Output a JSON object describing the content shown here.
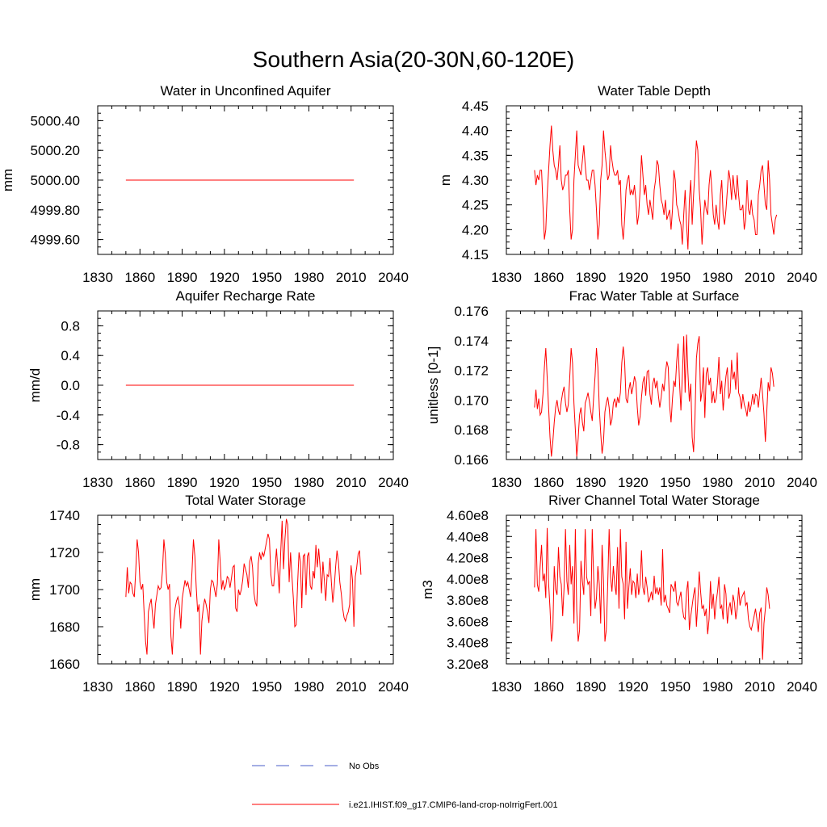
{
  "title": "Southern Asia(20-30N,60-120E)",
  "legend": {
    "entries": [
      {
        "label": "No Obs",
        "color": "#4a5cc8",
        "style": "dashed"
      },
      {
        "label": "i.e21.IHIST.f09_g17.CMIP6-land-crop-noIrrigFert.001",
        "color": "#ff0000",
        "style": "solid"
      }
    ]
  },
  "chart_data": [
    {
      "type": "line",
      "title": "Water in Unconfined Aquifer",
      "xlabel": "",
      "ylabel": "mm",
      "xlim": [
        1830,
        2040
      ],
      "ylim": [
        4999.5,
        5000.5
      ],
      "xticks": [
        "1830",
        "1860",
        "1890",
        "1920",
        "1950",
        "1980",
        "2010",
        "2040"
      ],
      "yticks": [
        "4999.60",
        "4999.80",
        "5000.00",
        "5000.20",
        "5000.40"
      ],
      "series": [
        {
          "color": "#ff0000",
          "x": [
            1850,
            2012
          ],
          "values": [
            5000.0,
            5000.0
          ]
        }
      ]
    },
    {
      "type": "line",
      "title": "Water Table Depth",
      "xlabel": "",
      "ylabel": "m",
      "xlim": [
        1830,
        2040
      ],
      "ylim": [
        4.15,
        4.45
      ],
      "xticks": [
        "1830",
        "1860",
        "1890",
        "1920",
        "1950",
        "1980",
        "2010",
        "2040"
      ],
      "yticks": [
        "4.15",
        "4.20",
        "4.25",
        "4.30",
        "4.35",
        "4.40",
        "4.45"
      ],
      "series": [
        {
          "color": "#ff0000",
          "x_start": 1850,
          "values": [
            4.32,
            4.29,
            4.31,
            4.3,
            4.32,
            4.32,
            4.25,
            4.18,
            4.2,
            4.27,
            4.32,
            4.37,
            4.41,
            4.36,
            4.33,
            4.32,
            4.3,
            4.33,
            4.37,
            4.3,
            4.28,
            4.29,
            4.31,
            4.31,
            4.32,
            4.24,
            4.18,
            4.2,
            4.3,
            4.35,
            4.4,
            4.33,
            4.32,
            4.31,
            4.34,
            4.37,
            4.33,
            4.3,
            4.3,
            4.28,
            4.3,
            4.32,
            4.32,
            4.29,
            4.24,
            4.18,
            4.21,
            4.3,
            4.33,
            4.4,
            4.36,
            4.33,
            4.3,
            4.31,
            4.37,
            4.34,
            4.32,
            4.31,
            4.31,
            4.32,
            4.29,
            4.3,
            4.21,
            4.18,
            4.22,
            4.28,
            4.3,
            4.31,
            4.27,
            4.28,
            4.27,
            4.29,
            4.26,
            4.21,
            4.23,
            4.28,
            4.35,
            4.31,
            4.27,
            4.29,
            4.25,
            4.23,
            4.26,
            4.24,
            4.22,
            4.28,
            4.3,
            4.34,
            4.33,
            4.29,
            4.26,
            4.25,
            4.23,
            4.26,
            4.22,
            4.23,
            4.24,
            4.2,
            4.24,
            4.32,
            4.3,
            4.25,
            4.24,
            4.22,
            4.21,
            4.17,
            4.23,
            4.28,
            4.21,
            4.16,
            4.26,
            4.3,
            4.21,
            4.27,
            4.32,
            4.38,
            4.36,
            4.28,
            4.24,
            4.17,
            4.22,
            4.26,
            4.24,
            4.23,
            4.29,
            4.32,
            4.28,
            4.23,
            4.21,
            4.25,
            4.22,
            4.2,
            4.27,
            4.3,
            4.23,
            4.21,
            4.24,
            4.28,
            4.32,
            4.3,
            4.26,
            4.31,
            4.28,
            4.26,
            4.31,
            4.27,
            4.24,
            4.24,
            4.25,
            4.2,
            4.22,
            4.3,
            4.24,
            4.23,
            4.26,
            4.23,
            4.22,
            4.19,
            4.19,
            4.27,
            4.29,
            4.32,
            4.33,
            4.29,
            4.25,
            4.24,
            4.34,
            4.3,
            4.23,
            4.21,
            4.19,
            4.22,
            4.23
          ]
        }
      ]
    },
    {
      "type": "line",
      "title": "Aquifer Recharge Rate",
      "xlabel": "",
      "ylabel": "mm/d",
      "xlim": [
        1830,
        2040
      ],
      "ylim": [
        -1.0,
        1.0
      ],
      "xticks": [
        "1830",
        "1860",
        "1890",
        "1920",
        "1950",
        "1980",
        "2010",
        "2040"
      ],
      "yticks": [
        "-0.8",
        "-0.4",
        "0.0",
        "0.4",
        "0.8"
      ],
      "series": [
        {
          "color": "#ff0000",
          "x": [
            1850,
            2012
          ],
          "values": [
            0.0,
            0.0
          ]
        }
      ]
    },
    {
      "type": "line",
      "title": "Frac Water Table at Surface",
      "xlabel": "",
      "ylabel": "unitless [0-1]",
      "xlim": [
        1830,
        2040
      ],
      "ylim": [
        0.166,
        0.176
      ],
      "xticks": [
        "1830",
        "1860",
        "1890",
        "1920",
        "1950",
        "1980",
        "2010",
        "2040"
      ],
      "yticks": [
        "0.166",
        "0.168",
        "0.170",
        "0.172",
        "0.174",
        "0.176"
      ],
      "series": [
        {
          "color": "#ff0000",
          "x_start": 1850,
          "values": [
            0.1695,
            0.1707,
            0.1694,
            0.1701,
            0.169,
            0.1692,
            0.1704,
            0.1722,
            0.1735,
            0.1715,
            0.1695,
            0.1675,
            0.1662,
            0.1672,
            0.1685,
            0.1695,
            0.17,
            0.1693,
            0.169,
            0.1699,
            0.1705,
            0.1709,
            0.1698,
            0.1692,
            0.1697,
            0.1715,
            0.1735,
            0.1725,
            0.1698,
            0.168,
            0.1662,
            0.1674,
            0.169,
            0.1695,
            0.1685,
            0.1679,
            0.1698,
            0.1701,
            0.1705,
            0.1699,
            0.1692,
            0.1686,
            0.1702,
            0.1716,
            0.1735,
            0.1722,
            0.1695,
            0.1678,
            0.1664,
            0.1672,
            0.1692,
            0.1698,
            0.1702,
            0.1695,
            0.1683,
            0.1687,
            0.1698,
            0.1701,
            0.1695,
            0.1702,
            0.1698,
            0.1705,
            0.1725,
            0.1736,
            0.1726,
            0.1701,
            0.1698,
            0.1707,
            0.1712,
            0.1704,
            0.1709,
            0.1716,
            0.1712,
            0.1695,
            0.1683,
            0.1689,
            0.1702,
            0.1712,
            0.1716,
            0.1703,
            0.1719,
            0.172,
            0.1704,
            0.1697,
            0.1711,
            0.1715,
            0.1708,
            0.1713,
            0.1703,
            0.1695,
            0.1702,
            0.1711,
            0.1706,
            0.1718,
            0.1726,
            0.1722,
            0.1696,
            0.1685,
            0.1701,
            0.1713,
            0.1709,
            0.1726,
            0.1738,
            0.1712,
            0.1693,
            0.1716,
            0.1743,
            0.1705,
            0.1744,
            0.1718,
            0.1699,
            0.1711,
            0.1675,
            0.1665,
            0.1689,
            0.1728,
            0.1738,
            0.1743,
            0.1699,
            0.1706,
            0.1722,
            0.1688,
            0.1718,
            0.1722,
            0.171,
            0.1715,
            0.1698,
            0.1706,
            0.1698,
            0.1701,
            0.1712,
            0.1729,
            0.1704,
            0.1713,
            0.1693,
            0.1705,
            0.1716,
            0.1722,
            0.1701,
            0.1705,
            0.1727,
            0.1714,
            0.1719,
            0.1707,
            0.1732,
            0.1705,
            0.1702,
            0.1694,
            0.1704,
            0.1697,
            0.1694,
            0.1689,
            0.1699,
            0.1692,
            0.1697,
            0.1704,
            0.1697,
            0.1704,
            0.1703,
            0.1695,
            0.1705,
            0.1715,
            0.1704,
            0.1691,
            0.1672,
            0.1692,
            0.1712,
            0.1706,
            0.1722,
            0.1718,
            0.1709
          ]
        }
      ]
    },
    {
      "type": "line",
      "title": "Total Water Storage",
      "xlabel": "",
      "ylabel": "mm",
      "xlim": [
        1830,
        2040
      ],
      "ylim": [
        1660,
        1740
      ],
      "xticks": [
        "1830",
        "1860",
        "1890",
        "1920",
        "1950",
        "1980",
        "2010",
        "2040"
      ],
      "yticks": [
        "1660",
        "1680",
        "1700",
        "1720",
        "1740"
      ],
      "series": [
        {
          "color": "#ff0000",
          "x_start": 1850,
          "values": [
            1696,
            1712,
            1698,
            1704,
            1703,
            1698,
            1696,
            1710,
            1727,
            1720,
            1704,
            1700,
            1703,
            1687,
            1672,
            1665,
            1688,
            1692,
            1695,
            1686,
            1679,
            1692,
            1697,
            1702,
            1700,
            1701,
            1710,
            1727,
            1719,
            1704,
            1700,
            1703,
            1675,
            1665,
            1683,
            1690,
            1694,
            1696,
            1691,
            1679,
            1695,
            1700,
            1705,
            1702,
            1704,
            1700,
            1696,
            1710,
            1727,
            1718,
            1701,
            1688,
            1692,
            1665,
            1683,
            1690,
            1695,
            1692,
            1688,
            1682,
            1700,
            1705,
            1704,
            1700,
            1696,
            1703,
            1727,
            1715,
            1700,
            1705,
            1700,
            1702,
            1707,
            1706,
            1701,
            1706,
            1712,
            1713,
            1690,
            1688,
            1700,
            1697,
            1700,
            1705,
            1714,
            1711,
            1708,
            1701,
            1715,
            1718,
            1712,
            1698,
            1693,
            1691,
            1714,
            1720,
            1716,
            1720,
            1718,
            1722,
            1726,
            1730,
            1727,
            1708,
            1702,
            1702,
            1712,
            1722,
            1710,
            1698,
            1720,
            1737,
            1711,
            1727,
            1738,
            1735,
            1704,
            1720,
            1707,
            1695,
            1680,
            1681,
            1703,
            1720,
            1715,
            1690,
            1718,
            1719,
            1697,
            1718,
            1720,
            1702,
            1700,
            1710,
            1706,
            1724,
            1712,
            1722,
            1712,
            1698,
            1715,
            1705,
            1694,
            1708,
            1707,
            1717,
            1704,
            1693,
            1701,
            1712,
            1721,
            1715,
            1704,
            1698,
            1690,
            1685,
            1683,
            1686,
            1688,
            1692,
            1713,
            1705,
            1680,
            1707,
            1712,
            1719,
            1721,
            1708
          ]
        }
      ]
    },
    {
      "type": "line",
      "title": "River Channel Total Water Storage",
      "xlabel": "",
      "ylabel": "m3",
      "xlim": [
        1830,
        2040
      ],
      "ylim": [
        320000000.0,
        460000000.0
      ],
      "xticks": [
        "1830",
        "1860",
        "1890",
        "1920",
        "1950",
        "1980",
        "2010",
        "2040"
      ],
      "yticks": [
        "3.20e8",
        "3.40e8",
        "3.60e8",
        "3.80e8",
        "4.00e8",
        "4.20e8",
        "4.40e8",
        "4.60e8"
      ],
      "series": [
        {
          "color": "#ff0000",
          "x_start": 1850,
          "values": [
            392000000.0,
            447000000.0,
            395000000.0,
            388000000.0,
            412000000.0,
            432000000.0,
            398000000.0,
            405000000.0,
            382000000.0,
            448000000.0,
            396000000.0,
            372000000.0,
            341000000.0,
            352000000.0,
            412000000.0,
            390000000.0,
            385000000.0,
            430000000.0,
            402000000.0,
            395000000.0,
            365000000.0,
            392000000.0,
            447000000.0,
            398000000.0,
            385000000.0,
            432000000.0,
            395000000.0,
            412000000.0,
            358000000.0,
            447000000.0,
            370000000.0,
            341000000.0,
            352000000.0,
            417000000.0,
            398000000.0,
            385000000.0,
            447000000.0,
            402000000.0,
            395000000.0,
            398000000.0,
            365000000.0,
            447000000.0,
            402000000.0,
            372000000.0,
            382000000.0,
            412000000.0,
            395000000.0,
            358000000.0,
            432000000.0,
            398000000.0,
            341000000.0,
            352000000.0,
            395000000.0,
            447000000.0,
            402000000.0,
            388000000.0,
            412000000.0,
            395000000.0,
            385000000.0,
            430000000.0,
            372000000.0,
            447000000.0,
            402000000.0,
            395000000.0,
            362000000.0,
            435000000.0,
            372000000.0,
            392000000.0,
            410000000.0,
            385000000.0,
            398000000.0,
            396000000.0,
            382000000.0,
            405000000.0,
            385000000.0,
            395000000.0,
            427000000.0,
            392000000.0,
            385000000.0,
            402000000.0,
            392000000.0,
            378000000.0,
            382000000.0,
            388000000.0,
            380000000.0,
            403000000.0,
            386000000.0,
            392000000.0,
            385000000.0,
            392000000.0,
            375000000.0,
            428000000.0,
            378000000.0,
            385000000.0,
            375000000.0,
            372000000.0,
            368000000.0,
            395000000.0,
            392000000.0,
            388000000.0,
            398000000.0,
            378000000.0,
            375000000.0,
            382000000.0,
            388000000.0,
            373000000.0,
            364000000.0,
            362000000.0,
            388000000.0,
            398000000.0,
            352000000.0,
            365000000.0,
            375000000.0,
            385000000.0,
            392000000.0,
            355000000.0,
            378000000.0,
            407000000.0,
            388000000.0,
            372000000.0,
            375000000.0,
            365000000.0,
            372000000.0,
            348000000.0,
            362000000.0,
            398000000.0,
            372000000.0,
            386000000.0,
            362000000.0,
            378000000.0,
            388000000.0,
            402000000.0,
            372000000.0,
            375000000.0,
            362000000.0,
            395000000.0,
            386000000.0,
            358000000.0,
            372000000.0,
            378000000.0,
            366000000.0,
            385000000.0,
            378000000.0,
            362000000.0,
            372000000.0,
            392000000.0,
            375000000.0,
            382000000.0,
            385000000.0,
            388000000.0,
            375000000.0,
            378000000.0,
            362000000.0,
            355000000.0,
            352000000.0,
            358000000.0,
            365000000.0,
            372000000.0,
            362000000.0,
            350000000.0,
            368000000.0,
            373000000.0,
            324000000.0,
            358000000.0,
            372000000.0,
            392000000.0,
            385000000.0,
            372000000.0
          ]
        }
      ]
    }
  ]
}
